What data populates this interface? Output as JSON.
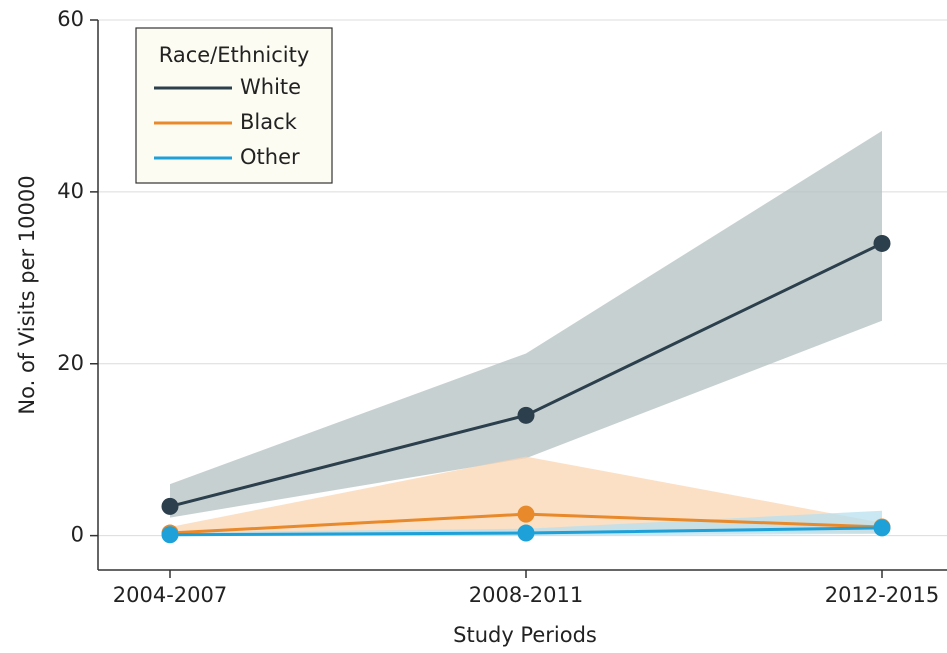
{
  "chart_data": {
    "type": "line",
    "x_label": "Study Periods",
    "y_label": "No. of Visits per 10000",
    "legend_title": "Race/Ethnicity",
    "legend_position": "upper left",
    "grid": true,
    "categories": [
      "2004-2007",
      "2008-2011",
      "2012-2015"
    ],
    "ylim": [
      -4,
      60
    ],
    "yticks": [
      0,
      20,
      40,
      60
    ],
    "series": [
      {
        "name": "White",
        "color": "#2b3f4c",
        "band_color": "#b4c0c2",
        "values": [
          3.4,
          14.0,
          34.0
        ],
        "lower": [
          2.1,
          9.0,
          25.0
        ],
        "upper": [
          6.0,
          21.2,
          47.1
        ]
      },
      {
        "name": "Black",
        "color": "#e8892b",
        "band_color": "#f9d6b2",
        "values": [
          0.3,
          2.5,
          1.0
        ],
        "lower": [
          0.0,
          0.5,
          0.3
        ],
        "upper": [
          1.0,
          9.2,
          1.5
        ]
      },
      {
        "name": "Other",
        "color": "#1da1d8",
        "band_color": "#b7e0ef",
        "values": [
          0.1,
          0.3,
          0.9
        ],
        "lower": [
          0.0,
          0.0,
          0.2
        ],
        "upper": [
          0.4,
          0.8,
          2.9
        ]
      }
    ]
  }
}
